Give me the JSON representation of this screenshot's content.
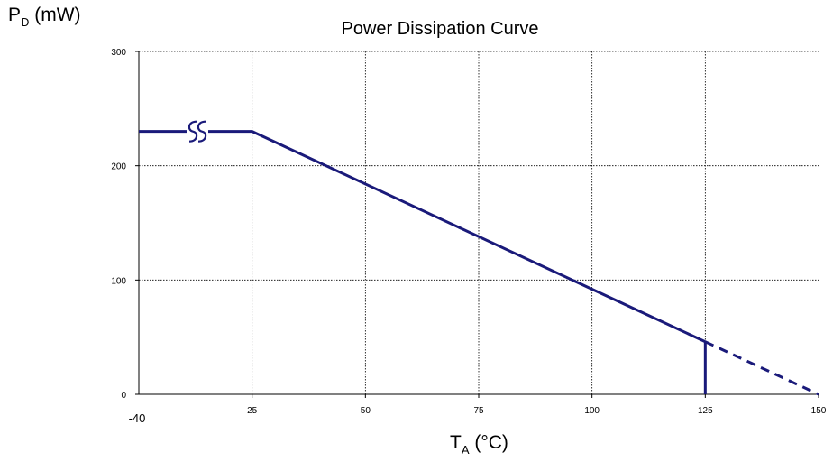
{
  "chart_data": {
    "type": "line",
    "title": "Power Dissipation Curve",
    "ylabel": {
      "main": "P",
      "sub": "D",
      "unit": " (mW)"
    },
    "xlabel": {
      "main": "T",
      "sub": "A",
      "unit": " (°C)"
    },
    "x_break_label": "-40",
    "xticks": [
      25,
      50,
      75,
      100,
      125,
      150
    ],
    "yticks": [
      0,
      100,
      200,
      300
    ],
    "xticklabels": [
      "25",
      "50",
      "75",
      "100",
      "125",
      "150"
    ],
    "yticklabels": [
      "0",
      "100",
      "200",
      "300"
    ],
    "xlim": [
      0,
      150
    ],
    "ylim": [
      0,
      300
    ],
    "grid": true,
    "axis_break": true,
    "series": [
      {
        "style": "solid",
        "points": [
          [
            0,
            230
          ],
          [
            25,
            230
          ],
          [
            125,
            46
          ]
        ]
      },
      {
        "style": "solid",
        "points": [
          [
            125,
            46
          ],
          [
            125,
            0
          ]
        ]
      },
      {
        "style": "dashed",
        "points": [
          [
            125,
            46
          ],
          [
            150,
            0
          ]
        ]
      }
    ],
    "colors": {
      "line": "#1a1a7a",
      "grid": "#000000"
    }
  }
}
